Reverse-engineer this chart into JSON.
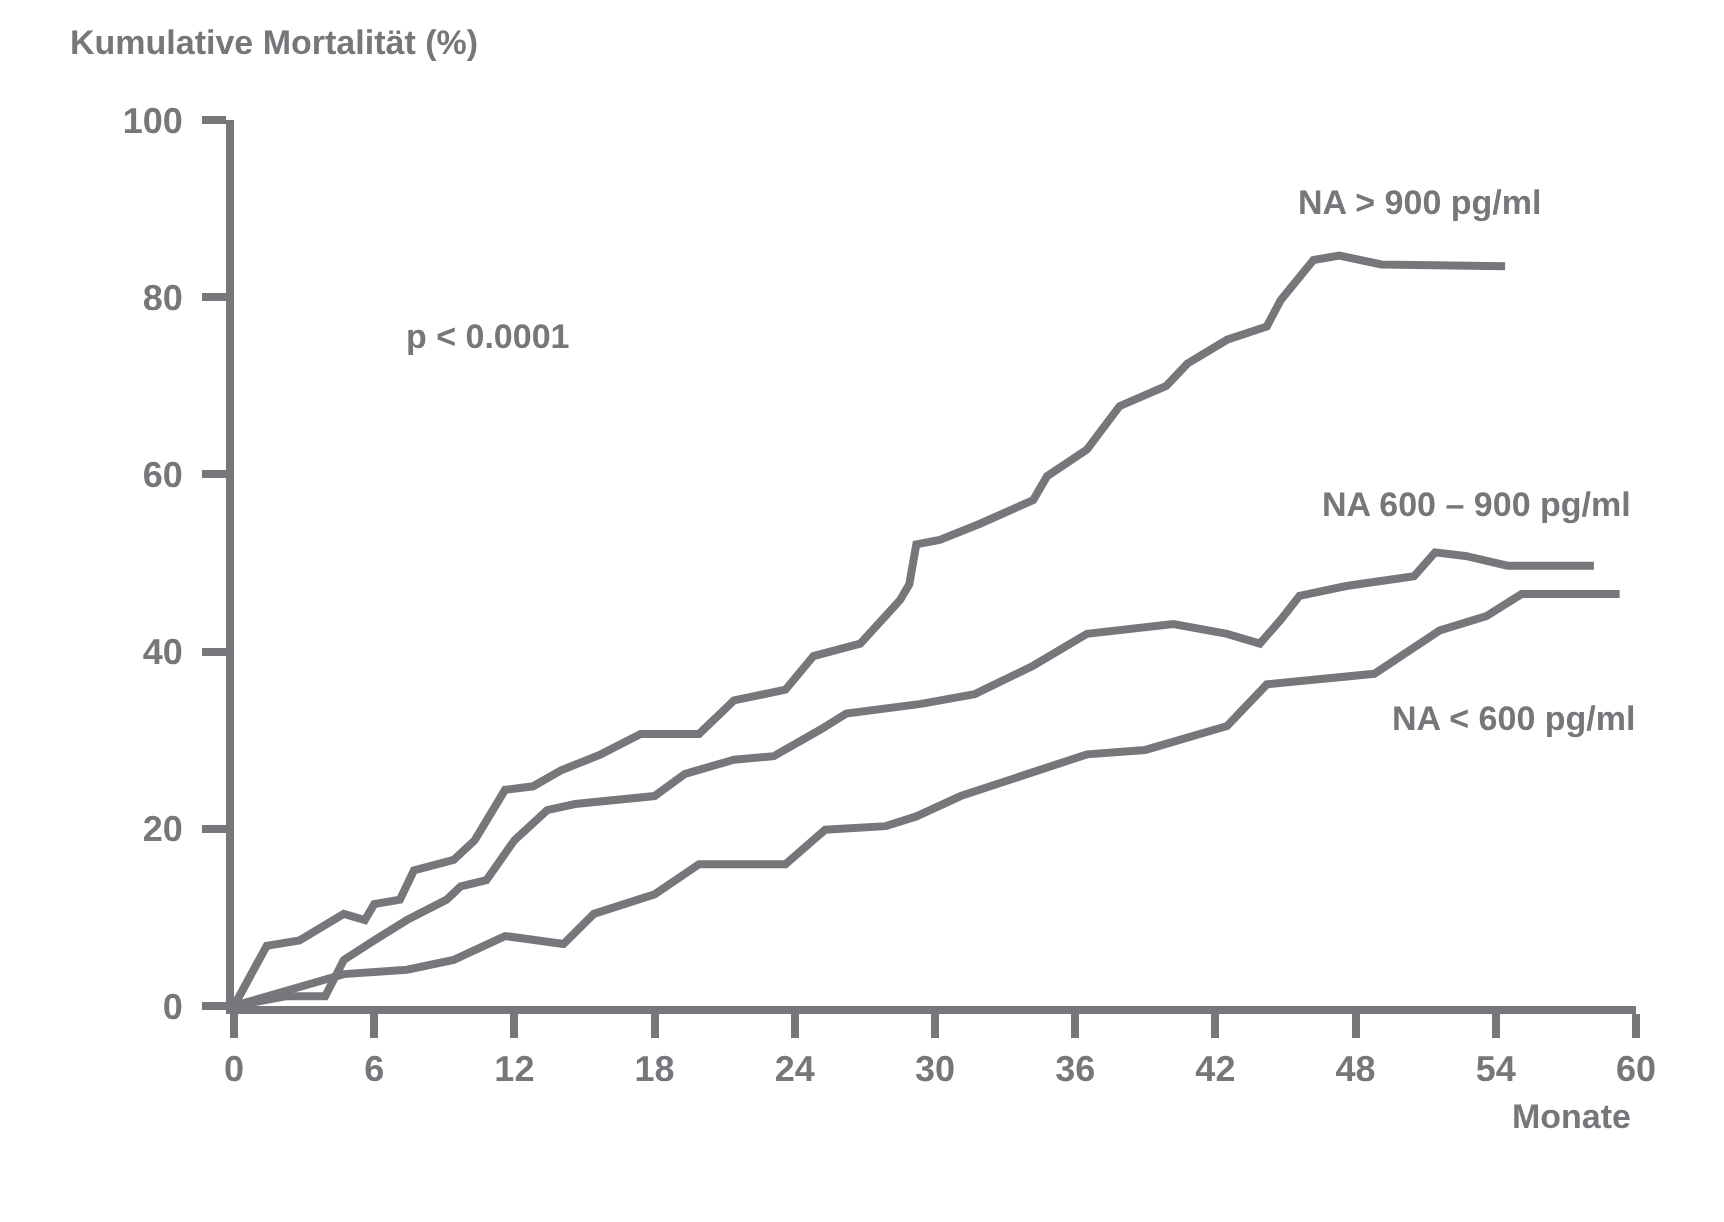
{
  "chart_data": {
    "type": "line",
    "ylabel": "Kumulative Mortalität (%)",
    "xlabel": "Monate",
    "annotations": [
      "p < 0.0001"
    ],
    "xlim": [
      0,
      60
    ],
    "xticks": [
      0,
      6,
      12,
      18,
      24,
      30,
      36,
      42,
      48,
      54,
      60
    ],
    "ylim": [
      0,
      100
    ],
    "yticks": [
      0,
      20,
      40,
      60,
      80,
      100
    ],
    "legend": false,
    "marker": "none",
    "line_style": "solid",
    "series": [
      {
        "name": "NA > 900 pg/ml",
        "color": "#77777b",
        "x": [
          0,
          1.4,
          2.8,
          4.7,
          5.6,
          6.0,
          7.1,
          7.7,
          9.4,
          10.3,
          11.6,
          12.8,
          14.0,
          15.7,
          17.4,
          19.9,
          21.4,
          23.6,
          24.8,
          26.8,
          28.5,
          28.9,
          29.2,
          30.2,
          31.9,
          34.2,
          34.8,
          36.5,
          37.9,
          39.9,
          40.8,
          42.5,
          44.2,
          44.8,
          46.2,
          47.3,
          49.1,
          54.4
        ],
        "values": [
          0,
          6.8,
          7.4,
          10.4,
          9.7,
          11.5,
          12.0,
          15.3,
          16.5,
          18.7,
          24.4,
          24.8,
          26.6,
          28.4,
          30.7,
          30.7,
          34.5,
          35.7,
          39.5,
          40.9,
          45.8,
          47.6,
          52.1,
          52.6,
          54.4,
          57.1,
          59.8,
          62.8,
          67.7,
          70.0,
          72.5,
          75.2,
          76.7,
          79.7,
          84.2,
          84.7,
          83.7,
          83.5
        ]
      },
      {
        "name": "NA 600 – 900 pg/ml",
        "color": "#77777b",
        "x": [
          0,
          2.2,
          3.9,
          4.7,
          6.0,
          7.4,
          9.1,
          9.7,
          10.8,
          12.0,
          13.4,
          14.6,
          18.0,
          19.3,
          21.4,
          23.1,
          25.1,
          26.2,
          29.4,
          31.7,
          34.2,
          36.5,
          40.2,
          42.5,
          43.9,
          44.8,
          45.6,
          47.6,
          50.5,
          51.4,
          52.7,
          54.5,
          58.2
        ],
        "values": [
          0,
          1.1,
          1.1,
          5.2,
          7.4,
          9.7,
          12.0,
          13.5,
          14.2,
          18.7,
          22.1,
          22.8,
          23.7,
          26.2,
          27.8,
          28.2,
          31.2,
          33.0,
          34.1,
          35.2,
          38.4,
          42.0,
          43.1,
          42.0,
          40.9,
          43.6,
          46.3,
          47.4,
          48.5,
          51.2,
          50.8,
          49.7,
          49.7
        ]
      },
      {
        "name": "NA < 600 pg/ml",
        "color": "#77777b",
        "x": [
          0,
          4.7,
          7.4,
          9.4,
          11.6,
          14.1,
          15.4,
          18.0,
          19.9,
          23.6,
          25.3,
          27.9,
          29.2,
          31.1,
          36.5,
          39.0,
          42.5,
          44.2,
          48.8,
          51.6,
          53.6,
          55.1,
          59.3
        ],
        "values": [
          0,
          3.6,
          4.1,
          5.2,
          7.9,
          7.0,
          10.4,
          12.6,
          16.0,
          16.0,
          19.9,
          20.3,
          21.4,
          23.7,
          28.4,
          28.9,
          31.6,
          36.3,
          37.5,
          42.4,
          44.0,
          46.5,
          46.5
        ]
      }
    ]
  }
}
